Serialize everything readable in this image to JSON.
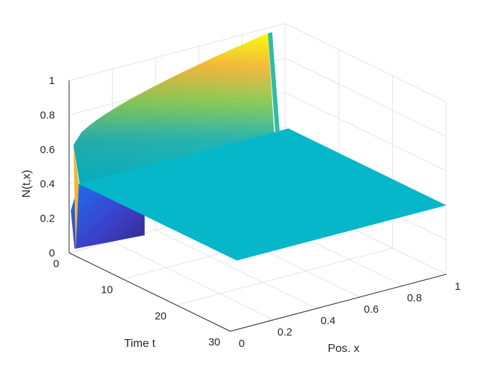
{
  "chart_data": {
    "type": "surface",
    "title": "",
    "xlabel": "Pos. x",
    "ylabel": "Time t",
    "zlabel": "N(t,x)",
    "xlim": [
      0,
      1
    ],
    "ylim": [
      0,
      30
    ],
    "zlim": [
      0,
      1
    ],
    "xticks": [
      "0",
      "0.2",
      "0.4",
      "0.6",
      "0.8",
      "1"
    ],
    "yticks": [
      "0",
      "10",
      "20",
      "30"
    ],
    "zticks": [
      "0",
      "0.2",
      "0.4",
      "0.6",
      "0.8",
      "1"
    ],
    "colormap": "parula",
    "grid": true,
    "view": "3d",
    "surface": {
      "steady_value": 0.4,
      "description_points": [
        {
          "t": 0,
          "x": 0,
          "N": 0.25
        },
        {
          "t": 0,
          "x": 0.05,
          "N": 0.0
        },
        {
          "t": 0,
          "x": 1,
          "N": 0.62
        },
        {
          "t": 0,
          "x": 0.9,
          "N": 0.95
        },
        {
          "t": 1,
          "x": 1,
          "N": 0.4
        },
        {
          "t": 30,
          "x": 0,
          "N": 0.4
        },
        {
          "t": 30,
          "x": 1,
          "N": 0.4
        }
      ]
    },
    "colors": {
      "low": "#352a87",
      "mid_blue": "#0f5cdd",
      "teal": "#06b6c9",
      "green": "#8ccc5a",
      "orange": "#f5b93e",
      "yellow": "#f9fb0e"
    }
  }
}
